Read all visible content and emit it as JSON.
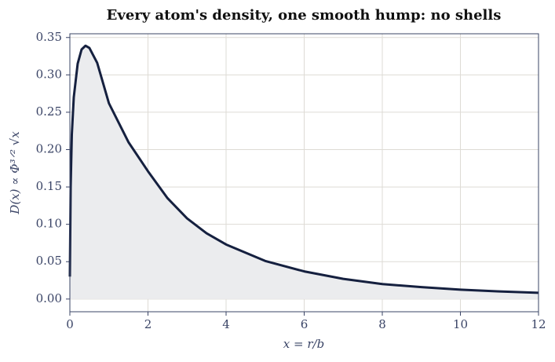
{
  "chart_data": {
    "type": "area",
    "title": "Every atom's density, one smooth hump: no shells",
    "xlabel": "x = r/b",
    "ylabel": "D(x) ∝ Φ³ᐟ² √x",
    "x": [
      0,
      0.02,
      0.05,
      0.1,
      0.2,
      0.3,
      0.4,
      0.5,
      0.7,
      1,
      1.5,
      2,
      2.5,
      3,
      3.5,
      4,
      5,
      6,
      7,
      8,
      9,
      10,
      11,
      12
    ],
    "values": [
      0.03,
      0.15,
      0.22,
      0.27,
      0.315,
      0.334,
      0.339,
      0.336,
      0.316,
      0.262,
      0.21,
      0.171,
      0.135,
      0.108,
      0.088,
      0.073,
      0.051,
      0.037,
      0.027,
      0.02,
      0.016,
      0.0126,
      0.0102,
      0.0084
    ],
    "color": "#15203f",
    "fill": "#ebecee",
    "xlim": [
      0,
      12
    ],
    "ylim": [
      -0.017,
      0.355
    ],
    "xticks": [
      0,
      2,
      4,
      6,
      8,
      10,
      12
    ],
    "yticks": [
      {
        "value": 0,
        "label": "0.00"
      },
      {
        "value": 0.05,
        "label": "0.05"
      },
      {
        "value": 0.1,
        "label": "0.10"
      },
      {
        "value": 0.15,
        "label": "0.15"
      },
      {
        "value": 0.2,
        "label": "0.20"
      },
      {
        "value": 0.25,
        "label": "0.25"
      },
      {
        "value": 0.3,
        "label": "0.30"
      },
      {
        "value": 0.35,
        "label": "0.35"
      }
    ],
    "grid": true
  }
}
